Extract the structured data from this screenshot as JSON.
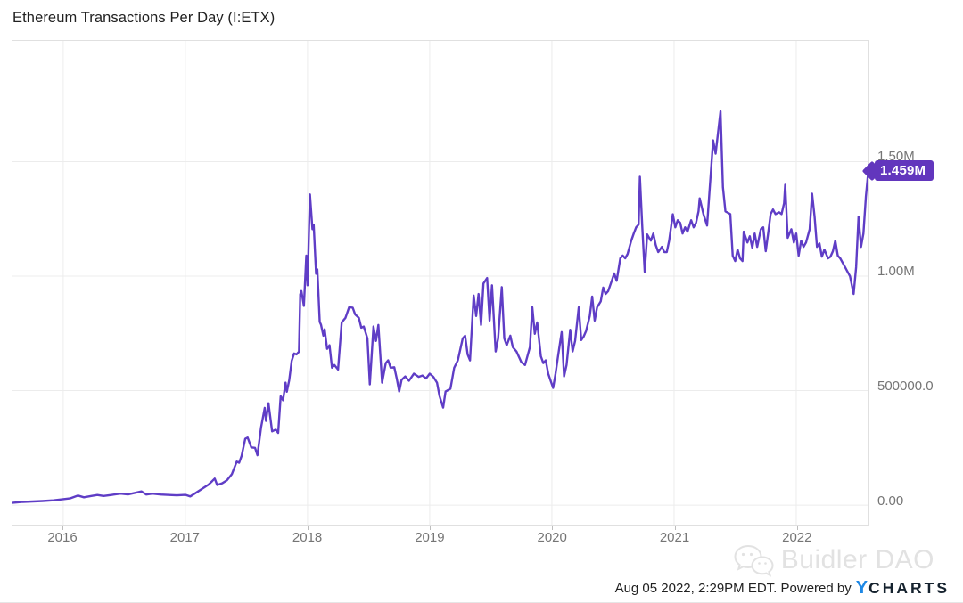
{
  "title": "Ethereum Transactions Per Day (I:ETX)",
  "colors": {
    "line": "#5f3dc6",
    "badge": "#6236bd",
    "brand_y_blue": "#1e88e5",
    "brand_charts_dark": "#15222e",
    "axis_label_gray": "#757575",
    "watermark_gray": "#e2e2e2"
  },
  "chart_data": {
    "type": "line",
    "title": "Ethereum Transactions Per Day (I:ETX)",
    "series_name": "Ethereum Transactions Per Day",
    "x_unit": "year (fractional)",
    "y_unit": "transactions per day",
    "grid": true,
    "legend": false,
    "x_ticks": [
      {
        "label": "2016",
        "value": 2016
      },
      {
        "label": "2017",
        "value": 2017
      },
      {
        "label": "2018",
        "value": 2018
      },
      {
        "label": "2019",
        "value": 2019
      },
      {
        "label": "2020",
        "value": 2020
      },
      {
        "label": "2021",
        "value": 2021
      },
      {
        "label": "2022",
        "value": 2022
      }
    ],
    "y_ticks": [
      {
        "label": "1.50M",
        "value": 1500000
      },
      {
        "label": "1.00M",
        "value": 1000000
      },
      {
        "label": "500000.0",
        "value": 500000
      },
      {
        "label": "0.00",
        "value": 0
      }
    ],
    "x_range": [
      2015.585,
      2022.592
    ],
    "y_range": [
      -85000,
      2027000
    ],
    "last_value": 1459000,
    "last_value_label": "1.459M",
    "points": [
      [
        2015.59,
        10000
      ],
      [
        2015.67,
        14000
      ],
      [
        2015.75,
        16000
      ],
      [
        2015.83,
        18000
      ],
      [
        2015.92,
        21000
      ],
      [
        2016.0,
        26000
      ],
      [
        2016.06,
        30000
      ],
      [
        2016.12,
        42000
      ],
      [
        2016.17,
        34000
      ],
      [
        2016.23,
        40000
      ],
      [
        2016.28,
        44000
      ],
      [
        2016.33,
        40000
      ],
      [
        2016.4,
        45000
      ],
      [
        2016.47,
        50000
      ],
      [
        2016.53,
        47000
      ],
      [
        2016.6,
        55000
      ],
      [
        2016.64,
        60000
      ],
      [
        2016.68,
        46000
      ],
      [
        2016.73,
        50000
      ],
      [
        2016.8,
        46000
      ],
      [
        2016.87,
        44000
      ],
      [
        2016.93,
        43000
      ],
      [
        2017.0,
        45000
      ],
      [
        2017.04,
        38000
      ],
      [
        2017.09,
        55000
      ],
      [
        2017.14,
        72000
      ],
      [
        2017.19,
        90000
      ],
      [
        2017.22,
        105000
      ],
      [
        2017.24,
        116000
      ],
      [
        2017.26,
        88000
      ],
      [
        2017.3,
        95000
      ],
      [
        2017.34,
        108000
      ],
      [
        2017.38,
        135000
      ],
      [
        2017.42,
        190000
      ],
      [
        2017.44,
        185000
      ],
      [
        2017.46,
        215000
      ],
      [
        2017.49,
        290000
      ],
      [
        2017.51,
        295000
      ],
      [
        2017.54,
        252000
      ],
      [
        2017.57,
        250000
      ],
      [
        2017.59,
        218000
      ],
      [
        2017.62,
        340000
      ],
      [
        2017.65,
        425000
      ],
      [
        2017.66,
        368000
      ],
      [
        2017.68,
        445000
      ],
      [
        2017.71,
        322000
      ],
      [
        2017.74,
        330000
      ],
      [
        2017.76,
        315000
      ],
      [
        2017.78,
        475000
      ],
      [
        2017.8,
        458000
      ],
      [
        2017.82,
        535000
      ],
      [
        2017.83,
        495000
      ],
      [
        2017.85,
        545000
      ],
      [
        2017.87,
        630000
      ],
      [
        2017.89,
        662000
      ],
      [
        2017.91,
        658000
      ],
      [
        2017.93,
        670000
      ],
      [
        2017.94,
        920000
      ],
      [
        2017.95,
        935000
      ],
      [
        2017.97,
        870000
      ],
      [
        2017.99,
        1090000
      ],
      [
        2018.0,
        960000
      ],
      [
        2018.02,
        1357000
      ],
      [
        2018.04,
        1205000
      ],
      [
        2018.05,
        1225000
      ],
      [
        2018.07,
        1010000
      ],
      [
        2018.08,
        1030000
      ],
      [
        2018.1,
        800000
      ],
      [
        2018.11,
        788000
      ],
      [
        2018.13,
        740000
      ],
      [
        2018.14,
        768000
      ],
      [
        2018.16,
        682000
      ],
      [
        2018.18,
        698000
      ],
      [
        2018.2,
        600000
      ],
      [
        2018.22,
        612000
      ],
      [
        2018.25,
        592000
      ],
      [
        2018.28,
        798000
      ],
      [
        2018.31,
        818000
      ],
      [
        2018.34,
        864000
      ],
      [
        2018.37,
        862000
      ],
      [
        2018.39,
        833000
      ],
      [
        2018.42,
        818000
      ],
      [
        2018.44,
        775000
      ],
      [
        2018.46,
        780000
      ],
      [
        2018.49,
        728000
      ],
      [
        2018.51,
        527000
      ],
      [
        2018.54,
        780000
      ],
      [
        2018.56,
        717000
      ],
      [
        2018.58,
        787000
      ],
      [
        2018.61,
        535000
      ],
      [
        2018.64,
        620000
      ],
      [
        2018.66,
        632000
      ],
      [
        2018.68,
        600000
      ],
      [
        2018.71,
        602000
      ],
      [
        2018.73,
        554000
      ],
      [
        2018.75,
        496000
      ],
      [
        2018.77,
        547000
      ],
      [
        2018.8,
        562000
      ],
      [
        2018.83,
        543000
      ],
      [
        2018.87,
        574000
      ],
      [
        2018.91,
        560000
      ],
      [
        2018.94,
        566000
      ],
      [
        2018.97,
        553000
      ],
      [
        2019.0,
        574000
      ],
      [
        2019.03,
        560000
      ],
      [
        2019.06,
        535000
      ],
      [
        2019.08,
        477000
      ],
      [
        2019.11,
        426000
      ],
      [
        2019.13,
        496000
      ],
      [
        2019.17,
        508000
      ],
      [
        2019.2,
        600000
      ],
      [
        2019.23,
        632000
      ],
      [
        2019.27,
        728000
      ],
      [
        2019.29,
        740000
      ],
      [
        2019.31,
        658000
      ],
      [
        2019.33,
        632000
      ],
      [
        2019.36,
        915000
      ],
      [
        2019.38,
        826000
      ],
      [
        2019.4,
        922000
      ],
      [
        2019.42,
        787000
      ],
      [
        2019.44,
        968000
      ],
      [
        2019.47,
        992000
      ],
      [
        2019.49,
        806000
      ],
      [
        2019.51,
        960000
      ],
      [
        2019.54,
        671000
      ],
      [
        2019.56,
        728000
      ],
      [
        2019.59,
        952000
      ],
      [
        2019.61,
        728000
      ],
      [
        2019.63,
        698000
      ],
      [
        2019.66,
        740000
      ],
      [
        2019.68,
        690000
      ],
      [
        2019.71,
        671000
      ],
      [
        2019.75,
        624000
      ],
      [
        2019.78,
        612000
      ],
      [
        2019.82,
        690000
      ],
      [
        2019.84,
        864000
      ],
      [
        2019.86,
        748000
      ],
      [
        2019.88,
        798000
      ],
      [
        2019.91,
        650000
      ],
      [
        2019.93,
        620000
      ],
      [
        2019.95,
        632000
      ],
      [
        2019.97,
        574000
      ],
      [
        2019.99,
        543000
      ],
      [
        2020.01,
        512000
      ],
      [
        2020.03,
        574000
      ],
      [
        2020.05,
        650000
      ],
      [
        2020.08,
        756000
      ],
      [
        2020.1,
        562000
      ],
      [
        2020.12,
        612000
      ],
      [
        2020.15,
        766000
      ],
      [
        2020.17,
        671000
      ],
      [
        2020.19,
        717000
      ],
      [
        2020.22,
        864000
      ],
      [
        2020.24,
        721000
      ],
      [
        2020.26,
        736000
      ],
      [
        2020.28,
        760000
      ],
      [
        2020.31,
        826000
      ],
      [
        2020.33,
        911000
      ],
      [
        2020.35,
        806000
      ],
      [
        2020.37,
        864000
      ],
      [
        2020.4,
        890000
      ],
      [
        2020.42,
        950000
      ],
      [
        2020.44,
        922000
      ],
      [
        2020.46,
        934000
      ],
      [
        2020.49,
        980000
      ],
      [
        2020.51,
        1012000
      ],
      [
        2020.53,
        980000
      ],
      [
        2020.56,
        1078000
      ],
      [
        2020.58,
        1090000
      ],
      [
        2020.6,
        1078000
      ],
      [
        2020.62,
        1097000
      ],
      [
        2020.65,
        1155000
      ],
      [
        2020.67,
        1186000
      ],
      [
        2020.69,
        1213000
      ],
      [
        2020.71,
        1225000
      ],
      [
        2020.72,
        1434000
      ],
      [
        2020.74,
        1213000
      ],
      [
        2020.76,
        1019000
      ],
      [
        2020.78,
        1182000
      ],
      [
        2020.81,
        1155000
      ],
      [
        2020.83,
        1186000
      ],
      [
        2020.85,
        1136000
      ],
      [
        2020.87,
        1105000
      ],
      [
        2020.9,
        1128000
      ],
      [
        2020.92,
        1105000
      ],
      [
        2020.94,
        1105000
      ],
      [
        2020.96,
        1155000
      ],
      [
        2020.99,
        1270000
      ],
      [
        2021.01,
        1213000
      ],
      [
        2021.03,
        1244000
      ],
      [
        2021.05,
        1233000
      ],
      [
        2021.07,
        1186000
      ],
      [
        2021.09,
        1213000
      ],
      [
        2021.11,
        1194000
      ],
      [
        2021.14,
        1244000
      ],
      [
        2021.16,
        1213000
      ],
      [
        2021.18,
        1233000
      ],
      [
        2021.2,
        1283000
      ],
      [
        2021.21,
        1340000
      ],
      [
        2021.24,
        1271000
      ],
      [
        2021.27,
        1221000
      ],
      [
        2021.32,
        1593000
      ],
      [
        2021.34,
        1535000
      ],
      [
        2021.38,
        1720000
      ],
      [
        2021.4,
        1388000
      ],
      [
        2021.42,
        1283000
      ],
      [
        2021.46,
        1271000
      ],
      [
        2021.48,
        1089000
      ],
      [
        2021.5,
        1066000
      ],
      [
        2021.52,
        1116000
      ],
      [
        2021.54,
        1078000
      ],
      [
        2021.56,
        1066000
      ],
      [
        2021.57,
        1194000
      ],
      [
        2021.6,
        1147000
      ],
      [
        2021.62,
        1174000
      ],
      [
        2021.64,
        1124000
      ],
      [
        2021.66,
        1186000
      ],
      [
        2021.68,
        1128000
      ],
      [
        2021.71,
        1205000
      ],
      [
        2021.73,
        1213000
      ],
      [
        2021.75,
        1109000
      ],
      [
        2021.77,
        1186000
      ],
      [
        2021.79,
        1271000
      ],
      [
        2021.81,
        1291000
      ],
      [
        2021.83,
        1271000
      ],
      [
        2021.86,
        1279000
      ],
      [
        2021.88,
        1271000
      ],
      [
        2021.9,
        1318000
      ],
      [
        2021.91,
        1399000
      ],
      [
        2021.93,
        1167000
      ],
      [
        2021.96,
        1205000
      ],
      [
        2021.98,
        1147000
      ],
      [
        2022.0,
        1186000
      ],
      [
        2022.02,
        1089000
      ],
      [
        2022.04,
        1155000
      ],
      [
        2022.06,
        1128000
      ],
      [
        2022.08,
        1147000
      ],
      [
        2022.11,
        1205000
      ],
      [
        2022.13,
        1360000
      ],
      [
        2022.15,
        1260000
      ],
      [
        2022.17,
        1128000
      ],
      [
        2022.19,
        1143000
      ],
      [
        2022.21,
        1085000
      ],
      [
        2022.23,
        1116000
      ],
      [
        2022.26,
        1078000
      ],
      [
        2022.28,
        1085000
      ],
      [
        2022.3,
        1109000
      ],
      [
        2022.32,
        1155000
      ],
      [
        2022.34,
        1089000
      ],
      [
        2022.36,
        1078000
      ],
      [
        2022.38,
        1058000
      ],
      [
        2022.4,
        1039000
      ],
      [
        2022.42,
        1019000
      ],
      [
        2022.44,
        1000000
      ],
      [
        2022.47,
        922000
      ],
      [
        2022.49,
        1039000
      ],
      [
        2022.51,
        1260000
      ],
      [
        2022.53,
        1128000
      ],
      [
        2022.55,
        1186000
      ],
      [
        2022.57,
        1349000
      ],
      [
        2022.59,
        1459000
      ]
    ]
  },
  "watermark": {
    "text": "Buidler DAO"
  },
  "footer": {
    "timestamp_text": "Aug 05 2022, 2:29PM EDT. Powered by",
    "brand_y": "Y",
    "brand_rest": "CHARTS"
  }
}
